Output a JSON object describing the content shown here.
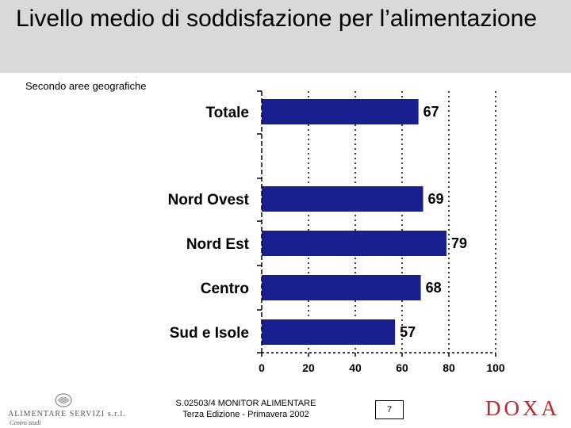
{
  "header": {
    "title": "Livello medio di soddisfazione per l’alimentazione",
    "subtitle": "Secondo aree geografiche",
    "band_color": "#d9d9d9"
  },
  "chart_data": {
    "type": "bar",
    "orientation": "horizontal",
    "categories": [
      "Totale",
      "Nord Ovest",
      "Nord Est",
      "Centro",
      "Sud e Isole"
    ],
    "values": [
      67,
      69,
      79,
      68,
      57
    ],
    "data_labels": [
      "67",
      "69",
      "79",
      "68",
      "57"
    ],
    "x_ticks": [
      "0",
      "20",
      "40",
      "60",
      "80",
      "100"
    ],
    "xlim": [
      0,
      100
    ],
    "grid": "vertical dotted",
    "bar_color": "#1a1f8f"
  },
  "footer": {
    "company_name": "ALIMENTARE SERVIZI s.r.l.",
    "company_sub": "Centro studi",
    "report_code": "S.02503/4 MONITOR ALIMENTARE",
    "report_edition": "Terza Edizione - Primavera 2002",
    "page_number": "7",
    "brand": "DOXA",
    "brand_color": "#c0262d"
  }
}
